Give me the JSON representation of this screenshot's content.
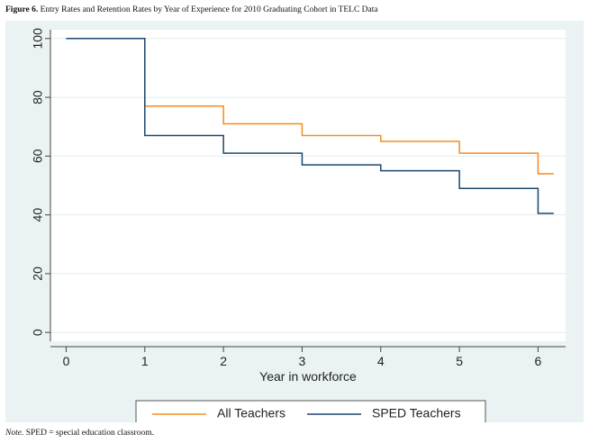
{
  "caption": {
    "label": "Figure 6.",
    "text": "Entry Rates and Retention Rates by Year of Experience for 2010 Graduating Cohort in TELC Data"
  },
  "note": {
    "label": "Note.",
    "text": "SPED = special education classroom."
  },
  "colors": {
    "plot_background": "#ffffff",
    "outer_background": "#eaf2f3",
    "grid": "#e2ebee",
    "all_teachers": "#f28e1c",
    "sped_teachers": "#1a476f"
  },
  "chart_data": {
    "type": "line",
    "step": true,
    "xlabel": "Year in workforce",
    "ylabel": "",
    "xlim": [
      0,
      6.2
    ],
    "ylim": [
      0,
      100
    ],
    "xticks": [
      0,
      1,
      2,
      3,
      4,
      5,
      6
    ],
    "yticks": [
      0,
      20,
      40,
      60,
      80,
      100
    ],
    "grid": true,
    "legend_position": "bottom",
    "series": [
      {
        "name": "All Teachers",
        "color": "#f28e1c",
        "x": [
          0,
          1,
          2,
          3,
          4,
          5,
          6,
          6.2
        ],
        "y": [
          100,
          77,
          71,
          67,
          65,
          61,
          54,
          54
        ]
      },
      {
        "name": "SPED Teachers",
        "color": "#1a476f",
        "x": [
          0,
          1,
          2,
          3,
          4,
          5,
          6,
          6.2
        ],
        "y": [
          100,
          67,
          61,
          57,
          55,
          49,
          40.5,
          40.5
        ]
      }
    ]
  }
}
